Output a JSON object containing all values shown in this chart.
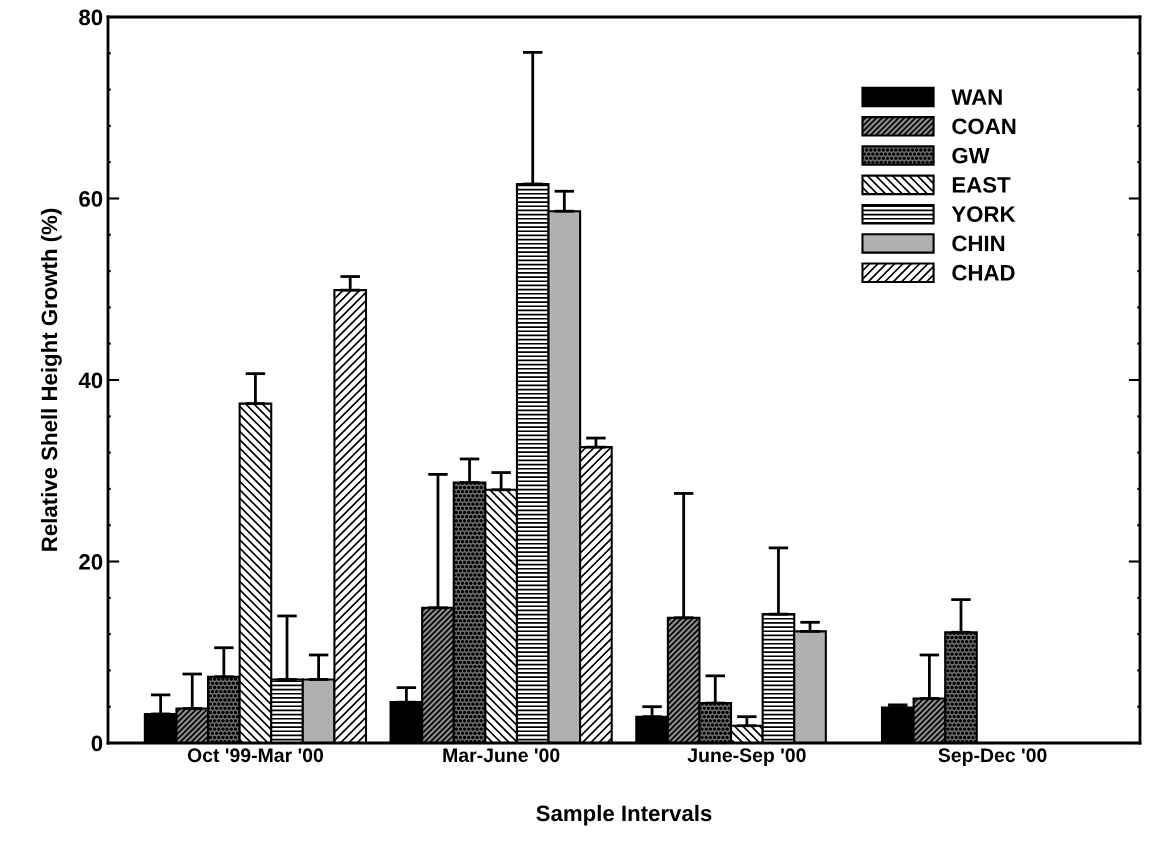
{
  "chart_data": {
    "type": "bar",
    "xlabel": "Sample Intervals",
    "ylabel": "Relative Shell Height Growth (%)",
    "categories": [
      "Oct '99-Mar '00",
      "Mar-June '00",
      "June-Sep '00",
      "Sep-Dec '00"
    ],
    "ylim": [
      0,
      80
    ],
    "yticks": [
      0,
      20,
      40,
      60,
      80
    ],
    "grid": false,
    "legend": "top right",
    "series": [
      {
        "name": "WAN",
        "color": "#000000",
        "values": [
          3.2,
          4.5,
          2.9,
          3.9
        ],
        "errors": [
          [
            3.2,
            5.3
          ],
          [
            4.5,
            6.1
          ],
          [
            2.9,
            4.0
          ],
          [
            3.9,
            4.2
          ]
        ]
      },
      {
        "name": "COAN",
        "color": "#000000",
        "values": [
          3.8,
          14.9,
          13.8,
          4.9
        ],
        "errors": [
          [
            3.8,
            7.6
          ],
          [
            14.9,
            29.6
          ],
          [
            13.8,
            27.5
          ],
          [
            4.9,
            9.7
          ]
        ]
      },
      {
        "name": "GW",
        "color": "#000000",
        "values": [
          7.3,
          28.7,
          4.4,
          12.2
        ],
        "errors": [
          [
            7.3,
            10.5
          ],
          [
            28.7,
            31.3
          ],
          [
            4.4,
            7.4
          ],
          [
            12.2,
            15.8
          ]
        ]
      },
      {
        "name": "EAST",
        "color": "#000000",
        "values": [
          37.4,
          27.9,
          1.9,
          null
        ],
        "errors": [
          [
            37.4,
            40.7
          ],
          [
            27.9,
            29.8
          ],
          [
            1.9,
            2.9
          ],
          null
        ]
      },
      {
        "name": "YORK",
        "color": "#000000",
        "values": [
          7.0,
          61.6,
          14.2,
          null
        ],
        "errors": [
          [
            7.0,
            14.0
          ],
          [
            61.6,
            76.1
          ],
          [
            14.2,
            21.5
          ],
          null
        ]
      },
      {
        "name": "CHIN",
        "color": "#b0b0b0",
        "values": [
          7.0,
          58.6,
          12.3,
          null
        ],
        "errors": [
          [
            7.0,
            9.7
          ],
          [
            58.6,
            60.8
          ],
          [
            12.3,
            13.3
          ],
          null
        ]
      },
      {
        "name": "CHAD",
        "color": "#000000",
        "values": [
          49.9,
          32.6,
          null,
          null
        ],
        "errors": [
          [
            49.9,
            51.4
          ],
          [
            32.6,
            33.6
          ],
          null,
          null
        ]
      }
    ]
  }
}
